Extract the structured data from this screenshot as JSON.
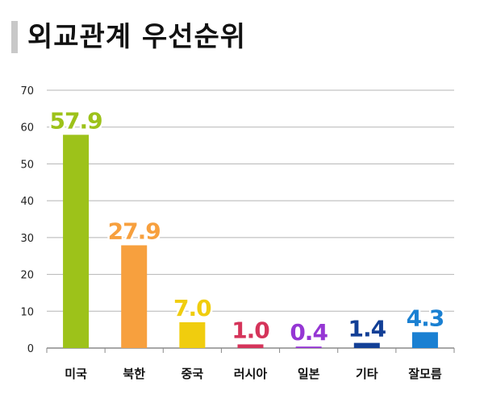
{
  "page": {
    "title": "외교관계 우선순위"
  },
  "chart_data": {
    "type": "bar",
    "title": "외교관계 우선순위",
    "xlabel": "",
    "ylabel": "",
    "ylim": [
      0,
      70
    ],
    "yticks": [
      0,
      10,
      20,
      30,
      40,
      50,
      60,
      70
    ],
    "grid": true,
    "legend": "none",
    "categories": [
      "미국",
      "북한",
      "중국",
      "러시아",
      "일본",
      "기타",
      "잘모름"
    ],
    "values": [
      57.9,
      27.9,
      7.0,
      1.0,
      0.4,
      1.4,
      4.3
    ],
    "value_labels": [
      "57.9",
      "27.9",
      "7.0",
      "1.0",
      "0.4",
      "1.4",
      "4.3"
    ],
    "colors": [
      "#9dc21a",
      "#f7a03e",
      "#f0cd0e",
      "#d5345a",
      "#9536d4",
      "#123f96",
      "#1a80d2"
    ]
  }
}
